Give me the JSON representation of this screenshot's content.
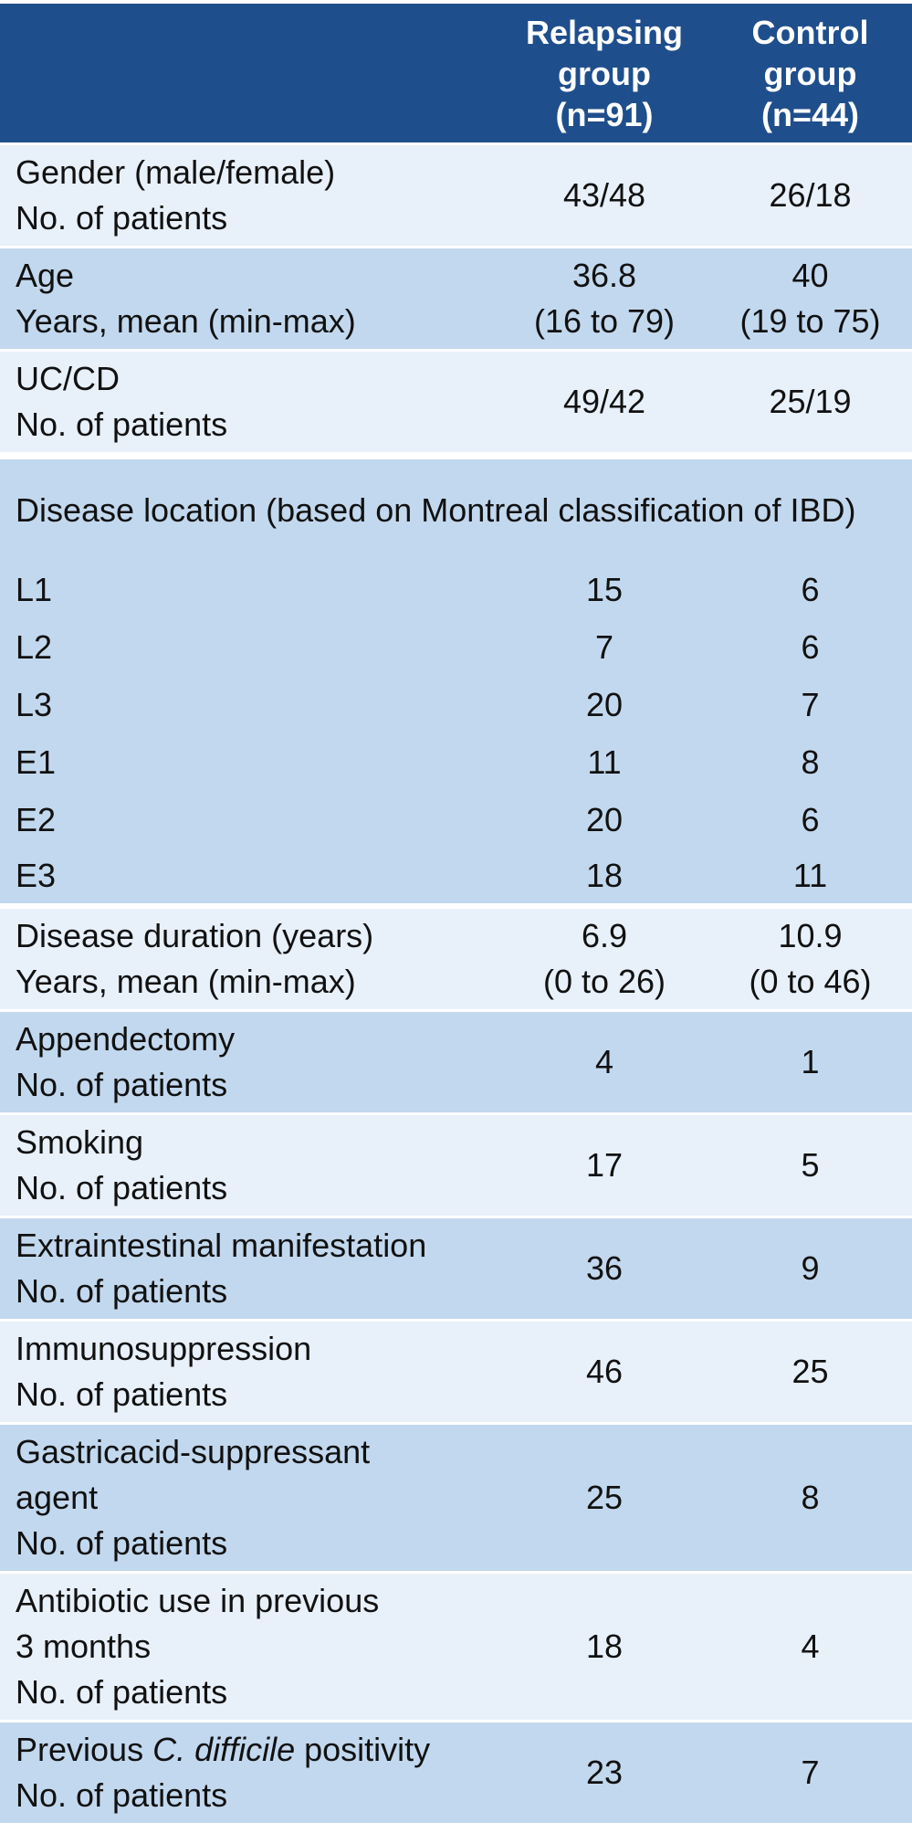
{
  "header": {
    "relapsing": [
      "Relapsing",
      "group",
      "(n=91)"
    ],
    "control": [
      "Control",
      "group",
      "(n=44)"
    ]
  },
  "rows": {
    "gender": {
      "label": [
        "Gender (male/female)",
        "No. of patients"
      ],
      "relapsing": "43/48",
      "control": "26/18"
    },
    "age": {
      "label": [
        "Age",
        "Years, mean (min-max)"
      ],
      "relapsing": [
        "36.8",
        "(16 to 79)"
      ],
      "control": [
        "40",
        "(19 to 75)"
      ]
    },
    "uccd": {
      "label": [
        "UC/CD",
        "No. of patients"
      ],
      "relapsing": "49/42",
      "control": "25/19"
    },
    "location": {
      "label": "Disease location (based on Montreal classification of IBD)",
      "items": [
        {
          "label": "L1",
          "relapsing": "15",
          "control": "6"
        },
        {
          "label": "L2",
          "relapsing": "7",
          "control": "6"
        },
        {
          "label": "L3",
          "relapsing": "20",
          "control": "7"
        },
        {
          "label": "E1",
          "relapsing": "11",
          "control": "8"
        },
        {
          "label": "E2",
          "relapsing": "20",
          "control": "6"
        },
        {
          "label": "E3",
          "relapsing": "18",
          "control": "11"
        }
      ]
    },
    "duration": {
      "label": [
        "Disease duration (years)",
        "Years, mean (min-max)"
      ],
      "relapsing": [
        "6.9",
        "(0 to 26)"
      ],
      "control": [
        "10.9",
        "(0 to 46)"
      ]
    },
    "appendectomy": {
      "label": [
        "Appendectomy",
        "No. of patients"
      ],
      "relapsing": "4",
      "control": "1"
    },
    "smoking": {
      "label": [
        "Smoking",
        "No. of patients"
      ],
      "relapsing": "17",
      "control": "5"
    },
    "extraintestinal": {
      "label": [
        "Extraintestinal manifestation",
        "No. of patients"
      ],
      "relapsing": "36",
      "control": "9"
    },
    "immuno": {
      "label": [
        "Immunosuppression",
        "No. of patients"
      ],
      "relapsing": "46",
      "control": "25"
    },
    "gastric": {
      "label": [
        "Gastricacid-suppressant",
        "agent",
        "No. of patients"
      ],
      "relapsing": "25",
      "control": "8"
    },
    "antibiotic": {
      "label": [
        "Antibiotic use in previous",
        "3 months",
        "No. of patients"
      ],
      "relapsing": "18",
      "control": "4"
    },
    "cdiff": {
      "label_pre": "Previous ",
      "label_italic": "C. difficile",
      "label_post": " positivity",
      "label_line2": "No. of patients",
      "relapsing": "23",
      "control": "7"
    }
  }
}
